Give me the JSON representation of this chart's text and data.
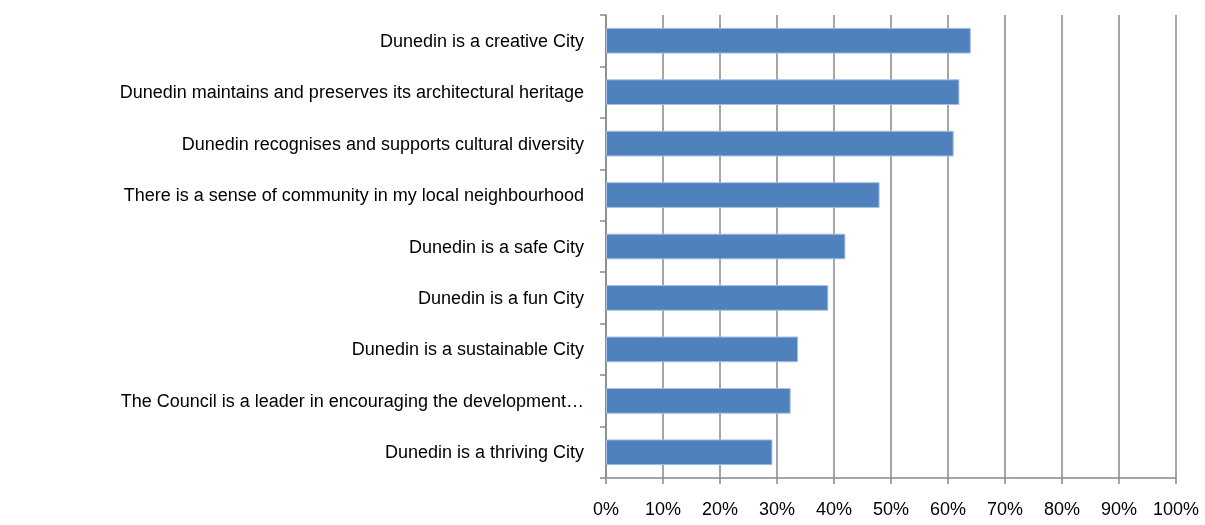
{
  "chart_data": {
    "type": "bar",
    "orientation": "horizontal",
    "categories": [
      "Dunedin is a creative City",
      "Dunedin maintains and preserves its architectural heritage",
      "Dunedin recognises and supports cultural diversity",
      "There is a sense of community in my local neighbourhood",
      "Dunedin is a safe City",
      "Dunedin is a fun City",
      "Dunedin is a sustainable City",
      "The Council is a leader in encouraging the development…",
      "Dunedin is a thriving City"
    ],
    "values": [
      64,
      62,
      61,
      48,
      42,
      39,
      33.7,
      32.4,
      29.2
    ],
    "color": "#4f81bd",
    "xlim": [
      0,
      100
    ],
    "xticks": [
      {
        "value": 0,
        "label": "0%"
      },
      {
        "value": 10,
        "label": "10%"
      },
      {
        "value": 20,
        "label": "20%"
      },
      {
        "value": 30,
        "label": "30%"
      },
      {
        "value": 40,
        "label": "40%"
      },
      {
        "value": 50,
        "label": "50%"
      },
      {
        "value": 60,
        "label": "60%"
      },
      {
        "value": 70,
        "label": "70%"
      },
      {
        "value": 80,
        "label": "80%"
      },
      {
        "value": 90,
        "label": "90%"
      },
      {
        "value": 100,
        "label": "100%"
      }
    ],
    "grid": "x"
  }
}
